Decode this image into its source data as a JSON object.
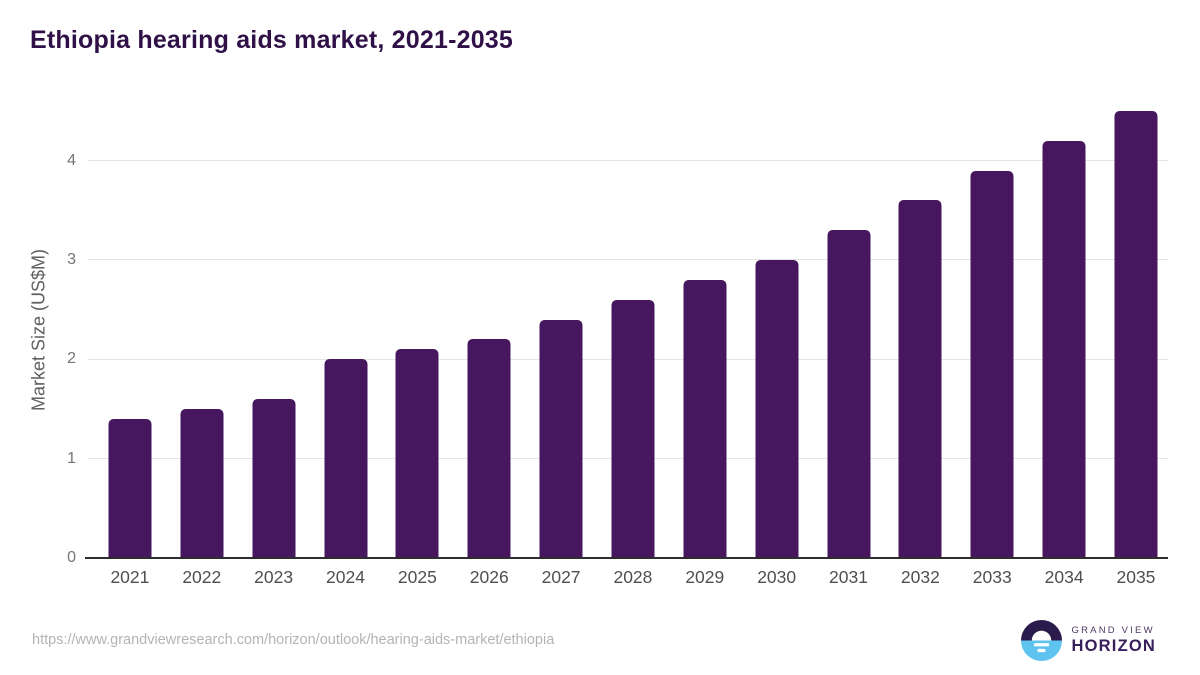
{
  "title": "Ethiopia hearing aids market, 2021-2035",
  "footer": {
    "url": "https://www.grandviewresearch.com/horizon/outlook/hearing-aids-market/ethiopia"
  },
  "logo": {
    "line1": "GRAND VIEW",
    "line2": "HORIZON"
  },
  "colors": {
    "bar": "#46175e",
    "title_text": "#2f1148",
    "axis_text": "#757575",
    "gridline": "#e5e5e5",
    "axis_line": "#2d2d2d",
    "logo_purple": "#2b1b4d",
    "logo_blue": "#5ec3ef"
  },
  "chart_data": {
    "type": "bar",
    "title": "Ethiopia hearing aids market, 2021-2035",
    "categories": [
      "2021",
      "2022",
      "2023",
      "2024",
      "2025",
      "2026",
      "2027",
      "2028",
      "2029",
      "2030",
      "2031",
      "2032",
      "2033",
      "2034",
      "2035"
    ],
    "values": [
      1.4,
      1.5,
      1.6,
      2.0,
      2.1,
      2.2,
      2.4,
      2.6,
      2.8,
      3.0,
      3.3,
      3.6,
      3.9,
      4.2,
      4.5
    ],
    "xlabel": "",
    "ylabel": "Market Size (US$M)",
    "yticks": [
      0,
      1,
      2,
      3,
      4
    ],
    "ylim": [
      0,
      4.61
    ],
    "grid": "horizontal",
    "legend": "none",
    "bar_color": "#46175e"
  }
}
